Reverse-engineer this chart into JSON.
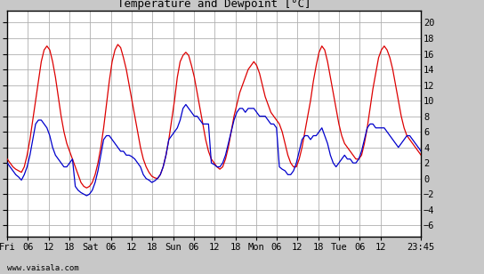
{
  "title": "Temperature and Dewpoint [°C]",
  "ylabel_right_ticks": [
    -6,
    -4,
    -2,
    0,
    2,
    4,
    6,
    8,
    10,
    12,
    14,
    16,
    18,
    20
  ],
  "ylim": [
    -7.5,
    21.5
  ],
  "bg_color": "#c8c8c8",
  "plot_bg_color": "#ffffff",
  "grid_color": "#b0b0b0",
  "temp_color": "#dd0000",
  "dewp_color": "#0000cc",
  "watermark": "www.vaisala.com",
  "xtick_labels": [
    "Fri",
    "06",
    "12",
    "18",
    "Sat",
    "06",
    "12",
    "18",
    "Sun",
    "06",
    "12",
    "18",
    "Mon",
    "06",
    "12",
    "18",
    "Tue",
    "06",
    "12",
    "23:45"
  ],
  "xtick_positions": [
    0,
    6,
    12,
    18,
    24,
    30,
    36,
    42,
    48,
    54,
    60,
    66,
    72,
    78,
    84,
    90,
    96,
    102,
    108,
    119.75
  ],
  "total_hours": 119.75,
  "temp_data": [
    2.5,
    2.0,
    1.5,
    1.2,
    1.0,
    0.8,
    1.5,
    3.0,
    5.0,
    7.5,
    10.0,
    12.5,
    15.0,
    16.5,
    17.0,
    16.5,
    15.0,
    13.0,
    10.5,
    8.0,
    6.0,
    4.5,
    3.5,
    2.5,
    1.5,
    0.5,
    -0.5,
    -1.0,
    -1.2,
    -1.0,
    -0.5,
    0.5,
    2.0,
    4.0,
    6.5,
    9.5,
    12.5,
    15.0,
    16.5,
    17.2,
    16.8,
    15.5,
    14.0,
    12.0,
    10.0,
    8.0,
    6.0,
    4.0,
    2.5,
    1.5,
    0.8,
    0.3,
    0.1,
    0.0,
    0.5,
    1.5,
    3.0,
    5.0,
    7.5,
    10.0,
    13.0,
    15.0,
    15.8,
    16.2,
    15.8,
    14.5,
    13.0,
    11.0,
    9.0,
    7.0,
    5.0,
    3.5,
    2.5,
    2.0,
    1.5,
    1.2,
    1.5,
    2.5,
    4.0,
    6.0,
    8.0,
    9.5,
    11.0,
    12.0,
    13.0,
    14.0,
    14.5,
    15.0,
    14.5,
    13.5,
    12.0,
    10.5,
    9.5,
    8.5,
    8.0,
    7.5,
    7.0,
    6.0,
    4.5,
    3.0,
    2.0,
    1.5,
    1.5,
    2.5,
    4.0,
    6.0,
    8.0,
    10.0,
    12.5,
    14.5,
    16.2,
    17.0,
    16.5,
    15.0,
    13.0,
    11.0,
    9.0,
    7.0,
    5.5,
    4.5,
    4.0,
    3.5,
    3.0,
    2.5,
    2.5,
    3.0,
    4.5,
    6.5,
    9.0,
    11.5,
    13.5,
    15.5,
    16.5,
    17.0,
    16.5,
    15.5,
    14.0,
    12.0,
    10.0,
    8.0,
    6.5,
    5.5,
    5.0,
    4.5,
    4.0,
    3.5,
    3.0
  ],
  "dewp_data": [
    2.0,
    1.5,
    1.0,
    0.5,
    0.2,
    -0.2,
    0.5,
    1.5,
    3.0,
    5.0,
    7.0,
    7.5,
    7.5,
    7.0,
    6.5,
    5.5,
    4.0,
    3.0,
    2.5,
    2.0,
    1.5,
    1.5,
    2.0,
    2.5,
    -1.0,
    -1.5,
    -1.8,
    -2.0,
    -2.2,
    -2.0,
    -1.5,
    -0.5,
    1.0,
    3.0,
    5.0,
    5.5,
    5.5,
    5.0,
    4.5,
    4.0,
    3.5,
    3.5,
    3.0,
    3.0,
    2.8,
    2.5,
    2.0,
    1.5,
    0.5,
    0.0,
    -0.2,
    -0.5,
    -0.3,
    0.0,
    0.5,
    1.5,
    3.0,
    5.0,
    5.5,
    6.0,
    6.5,
    7.5,
    9.0,
    9.5,
    9.0,
    8.5,
    8.0,
    8.0,
    7.5,
    7.0,
    7.0,
    7.0,
    2.0,
    1.8,
    1.5,
    1.5,
    2.0,
    3.0,
    4.5,
    6.0,
    7.5,
    8.5,
    9.0,
    9.0,
    8.5,
    9.0,
    9.0,
    9.0,
    8.5,
    8.0,
    8.0,
    8.0,
    7.5,
    7.0,
    7.0,
    6.5,
    1.5,
    1.2,
    1.0,
    0.5,
    0.5,
    1.0,
    2.0,
    3.5,
    5.0,
    5.5,
    5.5,
    5.0,
    5.5,
    5.5,
    6.0,
    6.5,
    5.5,
    4.5,
    3.0,
    2.0,
    1.5,
    2.0,
    2.5,
    3.0,
    2.5,
    2.5,
    2.0,
    2.0,
    2.5,
    3.5,
    5.0,
    6.5,
    7.0,
    7.0,
    6.5,
    6.5,
    6.5,
    6.5,
    6.0,
    5.5,
    5.0,
    4.5,
    4.0,
    4.5,
    5.0,
    5.5,
    5.5,
    5.0,
    4.5,
    4.0,
    3.5
  ]
}
